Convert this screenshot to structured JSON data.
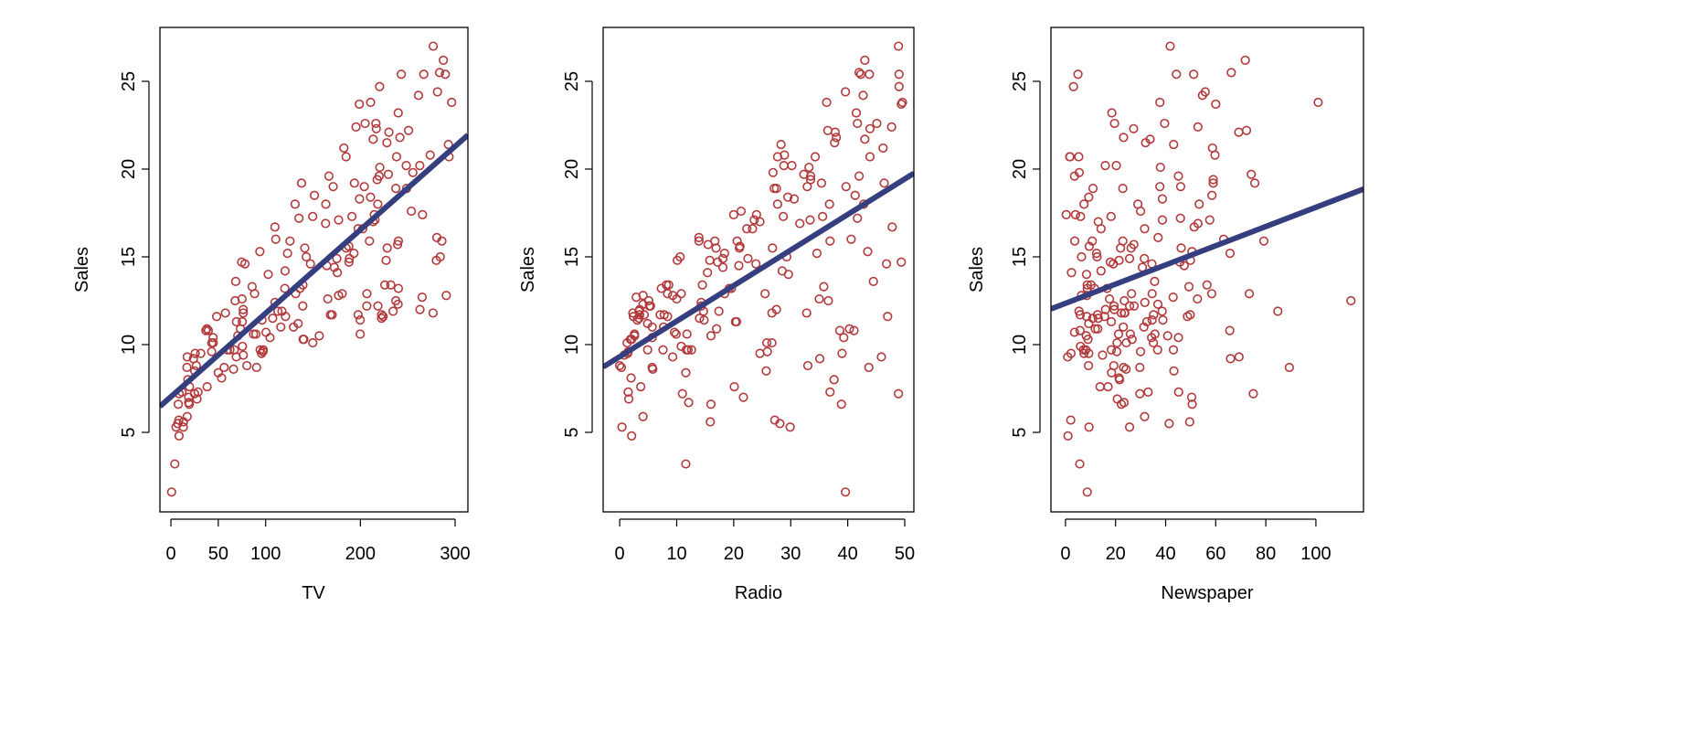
{
  "colors": {
    "points": "#B23A3C",
    "line": "#353E7E",
    "axis": "#000000"
  },
  "chart_data": [
    {
      "type": "scatter",
      "xlabel": "TV",
      "ylabel": "Sales",
      "xlim": [
        -11.6,
        313.5
      ],
      "ylim": [
        0.47,
        28.07
      ],
      "xticks": [
        0,
        50,
        100,
        200,
        300
      ],
      "yticks": [
        5,
        10,
        15,
        20,
        25
      ],
      "fit": {
        "intercept": 7.0326,
        "slope": 0.04754
      },
      "x": [
        230.1,
        44.5,
        17.2,
        151.5,
        180.8,
        8.7,
        57.5,
        120.2,
        8.6,
        199.8,
        66.1,
        214.7,
        23.8,
        97.5,
        204.1,
        195.4,
        67.8,
        281.4,
        69.2,
        147.3,
        218.4,
        237.4,
        13.2,
        228.3,
        62.3,
        262.9,
        142.9,
        240.1,
        248.8,
        70.6,
        292.9,
        112.9,
        97.2,
        265.6,
        95.7,
        290.7,
        266.9,
        74.7,
        43.1,
        228,
        202.5,
        177,
        293.6,
        206.9,
        25.1,
        175.1,
        89.7,
        239.9,
        227.2,
        66.9,
        199.8,
        100.4,
        216.4,
        182.6,
        262.7,
        198.9,
        7.3,
        136.2,
        210.8,
        210.7,
        53.5,
        261.3,
        239.3,
        102.7,
        131.1,
        69,
        31.5,
        139.3,
        237.4,
        216.8,
        199.1,
        109.8,
        26.8,
        129.4,
        213.4,
        16.9,
        27.5,
        120.5,
        5.4,
        116,
        76.4,
        239.8,
        75.3,
        68.4,
        213.5,
        193.2,
        76.3,
        110.7,
        88.3,
        109.8,
        134.3,
        28.6,
        217.7,
        250.9,
        107.4,
        163.3,
        197.6,
        184.9,
        289.7,
        135.2,
        222.4,
        296.4,
        280.2,
        187.9,
        238.2,
        137.9,
        25,
        90.4,
        13.1,
        255.4,
        225.8,
        241.7,
        175.7,
        209.6,
        78.2,
        75.1,
        139.2,
        76.4,
        125.7,
        19.4,
        141.3,
        18.8,
        224,
        123.1,
        229.5,
        87.2,
        7.8,
        80.2,
        220.3,
        59.6,
        0.7,
        265.2,
        8.4,
        219.8,
        36.9,
        48.3,
        25.6,
        273.7,
        43,
        184.9,
        73.4,
        193.7,
        220.5,
        104.6,
        96.2,
        140.3,
        240.1,
        243.2,
        38,
        44.7,
        280.7,
        121,
        197.6,
        171.3,
        187.8,
        4.1,
        93.9,
        149.8,
        11.7,
        131.7,
        172.5,
        85.7,
        188.4,
        163.5,
        117.2,
        234.5,
        17.9,
        206.8,
        215.4,
        284.3,
        50,
        164.5,
        19.6,
        168.4,
        222.4,
        276.9,
        248.4,
        170.2,
        276.7,
        165.6,
        156.6,
        218.5,
        56.2,
        287.6,
        253.8,
        205,
        139.5,
        191.1,
        286,
        18.7,
        39.5,
        75.5,
        17.2,
        166.8,
        149.7,
        38.2,
        94.2,
        177,
        283.6,
        232.1
      ],
      "y": [
        22.1,
        10.4,
        9.3,
        18.5,
        12.9,
        7.2,
        11.8,
        13.2,
        4.8,
        10.6,
        8.6,
        17.4,
        9.2,
        9.7,
        19,
        22.4,
        12.5,
        24.4,
        11.3,
        14.6,
        18,
        12.5,
        5.6,
        15.5,
        9.7,
        12,
        15,
        15.9,
        18.9,
        10.5,
        21.4,
        11.9,
        9.6,
        17.4,
        9.5,
        12.8,
        25.4,
        14.7,
        10.1,
        21.5,
        16.6,
        17.1,
        20.7,
        12.9,
        8.5,
        14.9,
        10.6,
        23.2,
        14.8,
        9.7,
        11.4,
        10.7,
        22.6,
        21.2,
        20.2,
        23.7,
        5.5,
        13.2,
        23.8,
        18.4,
        8.1,
        24.2,
        15.7,
        14,
        18,
        9.3,
        9.5,
        13.4,
        18.9,
        22.3,
        18.3,
        12.4,
        8.8,
        11,
        17,
        8.7,
        6.9,
        14.2,
        5.3,
        11,
        11.8,
        12.3,
        11.3,
        13.6,
        21.7,
        15.2,
        12,
        16,
        12.9,
        16.7,
        11.2,
        7.3,
        19.4,
        22.2,
        11.5,
        16.9,
        11.7,
        15.5,
        25.4,
        17.2,
        11.7,
        23.8,
        14.8,
        14.7,
        20.7,
        19.2,
        7.2,
        8.7,
        5.3,
        19.8,
        13.4,
        21.8,
        14.1,
        15.9,
        14.6,
        12.6,
        12.2,
        9.4,
        15.9,
        6.6,
        15.5,
        7,
        11.6,
        15.2,
        19.7,
        10.6,
        6.6,
        8.8,
        24.7,
        9.7,
        1.6,
        12.7,
        5.7,
        19.6,
        10.8,
        11.6,
        9.5,
        20.8,
        9.6,
        20.7,
        10.9,
        19.2,
        20.1,
        10.4,
        11.4,
        10.3,
        13.2,
        25.4,
        10.9,
        10.1,
        16.1,
        11.6,
        16.6,
        19,
        15.6,
        3.2,
        15.3,
        10.1,
        7.3,
        12.9,
        14.4,
        13.3,
        14.9,
        18,
        11.9,
        11.9,
        8,
        12.2,
        17.1,
        15,
        8.4,
        14.5,
        7.6,
        11.7,
        11.5,
        27,
        20.2,
        11.7,
        11.8,
        12.6,
        10.5,
        12.2,
        8.7,
        26.2,
        17.6,
        22.6,
        10.3,
        17.3,
        15.9,
        6.7,
        10.8,
        9.9,
        5.9,
        19.6,
        17.3,
        7.6,
        9.7,
        12.8,
        25.5,
        13.4
      ]
    },
    {
      "type": "scatter",
      "xlabel": "Radio",
      "ylabel": "Sales",
      "xlim": [
        -2.9,
        51.6
      ],
      "ylim": [
        0.47,
        28.07
      ],
      "xticks": [
        0,
        10,
        20,
        30,
        40,
        50
      ],
      "yticks": [
        5,
        10,
        15,
        20,
        25
      ],
      "fit": {
        "intercept": 9.312,
        "slope": 0.2025
      },
      "x": [
        37.8,
        39.3,
        45.9,
        41.3,
        10.8,
        48.9,
        32.8,
        19.6,
        2.1,
        2.6,
        5.8,
        24,
        35.1,
        7.6,
        32.9,
        47.7,
        36.6,
        39.6,
        20.5,
        23.9,
        27.7,
        5.1,
        15.9,
        16.9,
        12.6,
        3.5,
        29.3,
        16.7,
        27.1,
        16,
        28.3,
        17.4,
        1.5,
        20,
        1.4,
        4.1,
        43.8,
        49.4,
        26.7,
        37.7,
        22.3,
        33.4,
        27.7,
        8.4,
        25.7,
        22.5,
        9.9,
        41.5,
        15.8,
        11.7,
        3.1,
        9.6,
        41.7,
        46.2,
        28.8,
        49.4,
        28.1,
        19.2,
        49.6,
        29.5,
        2,
        42.7,
        15.5,
        29.6,
        42.8,
        9.3,
        24.6,
        14.5,
        27.5,
        43.9,
        30.6,
        14.3,
        33,
        5.7,
        24.6,
        43.7,
        1.6,
        28.5,
        29.9,
        7.7,
        26.7,
        4.1,
        20.3,
        44.5,
        43,
        18.4,
        27.5,
        40.6,
        25.5,
        47.8,
        4.9,
        1.5,
        33.5,
        36.5,
        14,
        31.6,
        3.5,
        21,
        42.3,
        41.7,
        4.3,
        36.3,
        10.1,
        17.2,
        34.3,
        46.4,
        11,
        0.3,
        0.4,
        26.9,
        8.2,
        38,
        15.4,
        20.6,
        46.8,
        35,
        14.3,
        0.8,
        36.9,
        16,
        26.8,
        21.7,
        2.4,
        34.6,
        32.3,
        11.8,
        38.9,
        0,
        49,
        12,
        39.6,
        2.9,
        27.2,
        33.5,
        38.6,
        47,
        39,
        28.9,
        25.9,
        43.9,
        17,
        35.4,
        33.2,
        5.7,
        14.8,
        1.9,
        7.3,
        49,
        40.3,
        25.8,
        13.9,
        8.4,
        23.3,
        39.7,
        21.1,
        11.6,
        43.5,
        1.3,
        36.9,
        18.4,
        18.1,
        35.8,
        18.1,
        36.8,
        14.7,
        3.4,
        37.6,
        5.2,
        23.6,
        10.6,
        11.6,
        20.9,
        20.1,
        7.1,
        3.4,
        48.9,
        30.2,
        7.8,
        2.3,
        10,
        2.6,
        5.4,
        5.7,
        43,
        21.3,
        45.1,
        2.1,
        28.7,
        13.9,
        12.1,
        41.1,
        10.8,
        4.1,
        42,
        35.6,
        3.7,
        4.9,
        9.3,
        42,
        8.6
      ],
      "y": [
        22.1,
        10.4,
        9.3,
        18.5,
        12.9,
        7.2,
        11.8,
        13.2,
        4.8,
        10.6,
        8.6,
        17.4,
        9.2,
        9.7,
        19,
        22.4,
        12.5,
        24.4,
        11.3,
        14.6,
        18,
        12.5,
        5.6,
        15.5,
        9.7,
        12,
        15,
        15.9,
        18.9,
        10.5,
        21.4,
        11.9,
        9.6,
        17.4,
        9.5,
        12.8,
        25.4,
        14.7,
        10.1,
        21.5,
        16.6,
        17.1,
        20.7,
        12.9,
        8.5,
        14.9,
        10.6,
        23.2,
        14.8,
        9.7,
        11.4,
        10.7,
        22.6,
        21.2,
        20.2,
        23.7,
        5.5,
        13.2,
        23.8,
        18.4,
        8.1,
        24.2,
        15.7,
        14,
        18,
        9.3,
        9.5,
        13.4,
        18.9,
        22.3,
        18.3,
        12.4,
        8.8,
        11,
        17,
        8.7,
        6.9,
        14.2,
        5.3,
        11,
        11.8,
        12.3,
        11.3,
        13.6,
        21.7,
        15.2,
        12,
        16,
        12.9,
        16.7,
        11.2,
        7.3,
        19.4,
        22.2,
        11.5,
        16.9,
        11.7,
        15.5,
        25.4,
        17.2,
        11.7,
        23.8,
        14.8,
        14.7,
        20.7,
        19.2,
        7.2,
        8.7,
        5.3,
        19.8,
        13.4,
        21.8,
        14.1,
        15.9,
        14.6,
        12.6,
        12.2,
        9.4,
        15.9,
        6.6,
        15.5,
        7,
        11.6,
        15.2,
        19.7,
        10.6,
        6.6,
        8.8,
        24.7,
        9.7,
        1.6,
        12.7,
        5.7,
        19.6,
        10.8,
        11.6,
        9.5,
        20.8,
        9.6,
        20.7,
        10.9,
        19.2,
        20.1,
        10.4,
        11.4,
        10.3,
        13.2,
        25.4,
        10.9,
        10.1,
        16.1,
        11.6,
        16.6,
        19,
        15.6,
        3.2,
        15.3,
        10.1,
        7.3,
        12.9,
        14.4,
        13.3,
        14.9,
        18,
        11.9,
        11.9,
        8,
        12.2,
        17.1,
        15,
        8.4,
        14.5,
        7.6,
        11.7,
        11.5,
        27,
        20.2,
        11.7,
        11.8,
        12.6,
        10.5,
        12.2,
        8.7,
        26.2,
        17.6,
        22.6,
        10.3,
        17.3,
        15.9,
        6.7,
        10.8,
        9.9,
        5.9,
        19.6,
        17.3,
        7.6,
        9.7,
        12.8,
        25.5,
        13.4
      ]
    },
    {
      "type": "scatter",
      "xlabel": "Newspaper",
      "ylabel": "Sales",
      "xlim": [
        -5.8,
        119
      ],
      "ylim": [
        0.47,
        28.07
      ],
      "xticks": [
        0,
        20,
        40,
        60,
        80,
        100
      ],
      "yticks": [
        5,
        10,
        15,
        20,
        25
      ],
      "fit": {
        "intercept": 12.351,
        "slope": 0.0547
      },
      "x": [
        69.2,
        45.1,
        69.3,
        58.5,
        58.4,
        75,
        23.5,
        11.6,
        1,
        21.2,
        24.2,
        4,
        65.9,
        7.2,
        46,
        52.9,
        114,
        55.8,
        18.3,
        19.1,
        53.4,
        23.5,
        49.6,
        26.2,
        18.3,
        19.5,
        12.6,
        22.9,
        22.9,
        40.8,
        43.2,
        38.6,
        30,
        0.3,
        7.4,
        8.5,
        5,
        45.7,
        35.1,
        32,
        31.6,
        38.7,
        1.8,
        26.4,
        43.3,
        31.5,
        35.7,
        18.5,
        49.9,
        36.8,
        34.6,
        3.6,
        39.6,
        58.7,
        15.9,
        60,
        41.4,
        16.6,
        37.7,
        9.3,
        21.4,
        54.7,
        27.3,
        8.4,
        28.9,
        0.9,
        2.2,
        10.2,
        11,
        27.2,
        38.7,
        31.7,
        19.3,
        31.3,
        13.1,
        89.4,
        20.7,
        14.2,
        9.4,
        23.1,
        22.3,
        36.9,
        32.5,
        35.6,
        33.8,
        65.7,
        16,
        63.2,
        73.4,
        51.4,
        9.3,
        33,
        59,
        72.3,
        10.9,
        52.9,
        5.9,
        22,
        51.2,
        45.9,
        49.8,
        100.9,
        21.4,
        17.9,
        5.3,
        59,
        29.7,
        23.2,
        25.6,
        5.5,
        56.5,
        23.2,
        2.4,
        10.7,
        34.5,
        52.7,
        25.6,
        14.8,
        79.2,
        22.3,
        46.2,
        50.4,
        15.6,
        12.4,
        74.2,
        25.9,
        50.6,
        9.2,
        3.2,
        43.1,
        8.7,
        43,
        2.1,
        45.1,
        65.6,
        8.5,
        9.3,
        59.7,
        20.5,
        1.7,
        12.9,
        75.6,
        37.9,
        34.4,
        38.9,
        9,
        8.7,
        44.3,
        11.9,
        20.6,
        37,
        48.7,
        14.2,
        37.7,
        9.5,
        5.7,
        50.5,
        24.3,
        45.2,
        34.6,
        30.7,
        49.3,
        25.6,
        7.4,
        5.4,
        84.8,
        21.6,
        19.4,
        57.6,
        6.4,
        18.4,
        47.4,
        17,
        12.8,
        13.1,
        41.8,
        20.3,
        35.2,
        23.7,
        17.6,
        8.3,
        27.4,
        29.7,
        71.8,
        30,
        19.6,
        26.6,
        18.2,
        3.7,
        23.4,
        5.8,
        6,
        31.6,
        3.6,
        6,
        13.8,
        8.1,
        6.4,
        66.2,
        8.7
      ],
      "y": [
        22.1,
        10.4,
        9.3,
        18.5,
        12.9,
        7.2,
        11.8,
        13.2,
        4.8,
        10.6,
        8.6,
        17.4,
        9.2,
        9.7,
        19,
        22.4,
        12.5,
        24.4,
        11.3,
        14.6,
        18,
        12.5,
        5.6,
        15.5,
        9.7,
        12,
        15,
        15.9,
        18.9,
        10.5,
        21.4,
        11.9,
        9.6,
        17.4,
        9.5,
        12.8,
        25.4,
        14.7,
        10.1,
        21.5,
        16.6,
        17.1,
        20.7,
        12.9,
        8.5,
        14.9,
        10.6,
        23.2,
        14.8,
        9.7,
        11.4,
        10.7,
        22.6,
        21.2,
        20.2,
        23.7,
        5.5,
        13.2,
        23.8,
        18.4,
        8.1,
        24.2,
        15.7,
        14,
        18,
        9.3,
        9.5,
        13.4,
        18.9,
        22.3,
        18.3,
        12.4,
        8.8,
        11,
        17,
        8.7,
        6.9,
        14.2,
        5.3,
        11,
        11.8,
        12.3,
        11.3,
        13.6,
        21.7,
        15.2,
        12,
        16,
        12.9,
        16.7,
        11.2,
        7.3,
        19.4,
        22.2,
        11.5,
        16.9,
        11.7,
        15.5,
        25.4,
        17.2,
        11.7,
        23.8,
        14.8,
        14.7,
        20.7,
        19.2,
        7.2,
        8.7,
        5.3,
        19.8,
        13.4,
        21.8,
        14.1,
        15.9,
        14.6,
        12.6,
        12.2,
        9.4,
        15.9,
        6.6,
        15.5,
        7,
        11.6,
        15.2,
        19.7,
        10.6,
        6.6,
        8.8,
        24.7,
        9.7,
        1.6,
        12.7,
        5.7,
        19.6,
        10.8,
        11.6,
        9.5,
        20.8,
        9.6,
        20.7,
        10.9,
        19.2,
        20.1,
        10.4,
        11.4,
        10.3,
        13.2,
        25.4,
        10.9,
        10.1,
        16.1,
        11.6,
        16.6,
        19,
        15.6,
        3.2,
        15.3,
        10.1,
        7.3,
        12.9,
        14.4,
        13.3,
        14.9,
        18,
        11.9,
        11.9,
        8,
        12.2,
        17.1,
        15,
        8.4,
        14.5,
        7.6,
        11.7,
        11.5,
        27,
        20.2,
        11.7,
        11.8,
        12.6,
        10.5,
        12.2,
        8.7,
        26.2,
        17.6,
        22.6,
        10.3,
        17.3,
        15.9,
        6.7,
        10.8,
        9.9,
        5.9,
        19.6,
        17.3,
        7.6,
        9.7,
        12.8,
        25.5,
        13.4
      ]
    }
  ]
}
